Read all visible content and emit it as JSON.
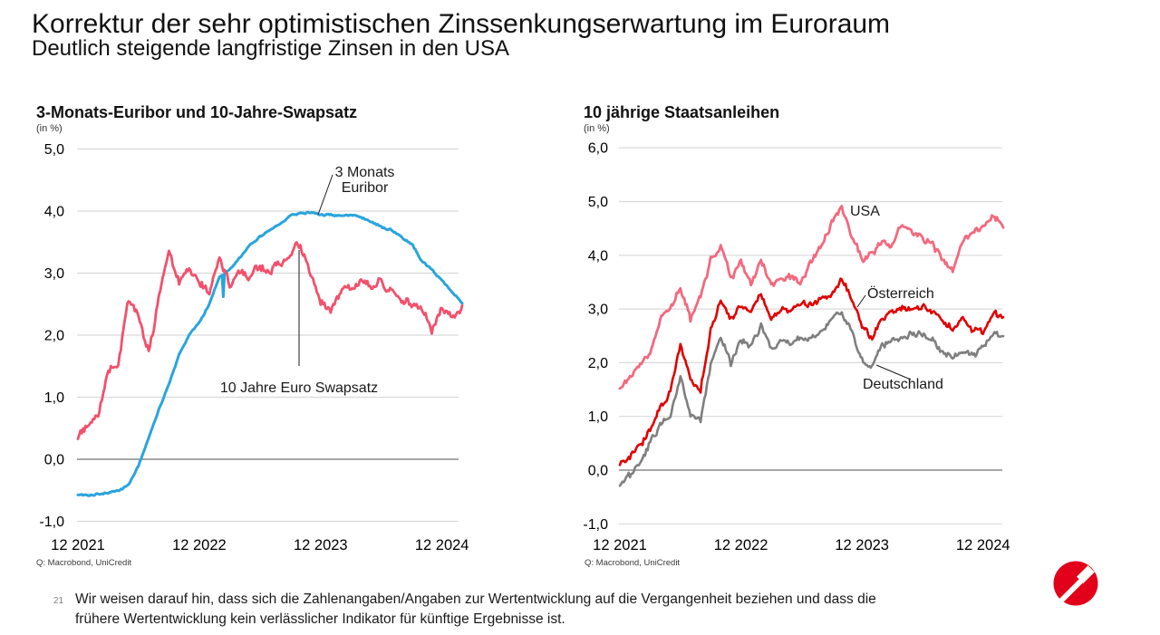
{
  "header": {
    "title": "Korrektur der sehr optimistischen Zinssenkungserwartung im Euroraum",
    "subtitle": "Deutlich steigende langfristige Zinsen in den USA"
  },
  "footer": {
    "page_number": "21",
    "line1": "Wir weisen darauf hin, dass sich die Zahlenangaben/Angaben zur Wertentwicklung auf die Vergangenheit beziehen und dass die",
    "line2": "frühere Wertentwicklung kein verlässlicher Indikator für künftige Ergebnisse ist."
  },
  "logo": {
    "name": "unicredit-logo",
    "color": "#E2001A"
  },
  "chart_data": [
    {
      "type": "line",
      "title": "3-Monats-Euribor und 10-Jahre-Swapsatz",
      "unit_label": "(in %)",
      "source": "Q: Macrobond, UniCredit",
      "x_start": "2021-12",
      "x_end": "2025-02",
      "frequency": "monthly",
      "x_tick_labels": [
        "12 2021",
        "12 2022",
        "12 2023",
        "12 2024"
      ],
      "x_tick_months": [
        0,
        12,
        24,
        36
      ],
      "y_ticks": [
        5,
        4,
        3,
        2,
        1,
        0,
        -1
      ],
      "y_tick_labels": [
        "5,0",
        "4,0",
        "3,0",
        "2,0",
        "1,0",
        "0,0",
        "-1,0"
      ],
      "ylim": [
        -1,
        5
      ],
      "grid": true,
      "legend_position": "annotated-on-chart",
      "series": [
        {
          "name": "3 Monats Euribor",
          "color": "#2AA4DC",
          "width": 3,
          "noise": 0.012,
          "spike": {
            "m": 14.4,
            "v": 2.62
          },
          "values": [
            -0.57,
            -0.57,
            -0.56,
            -0.54,
            -0.5,
            -0.42,
            -0.1,
            0.35,
            0.8,
            1.2,
            1.7,
            2.0,
            2.2,
            2.5,
            2.95,
            3.05,
            3.25,
            3.45,
            3.58,
            3.7,
            3.8,
            3.93,
            3.97,
            3.98,
            3.94,
            3.94,
            3.93,
            3.94,
            3.9,
            3.84,
            3.74,
            3.7,
            3.58,
            3.48,
            3.2,
            3.05,
            2.88,
            2.7,
            2.52
          ]
        },
        {
          "name": "10 Jahre Euro Swapsatz",
          "color": "#F2506C",
          "width": 2.8,
          "noise": 0.05,
          "values": [
            0.35,
            0.55,
            0.7,
            1.45,
            1.55,
            2.6,
            2.3,
            1.7,
            2.6,
            3.35,
            2.85,
            3.1,
            2.9,
            2.7,
            3.3,
            2.8,
            3.05,
            2.95,
            3.1,
            3.05,
            3.15,
            3.3,
            3.47,
            3.0,
            2.55,
            2.45,
            2.7,
            2.75,
            2.9,
            2.8,
            2.85,
            2.75,
            2.6,
            2.5,
            2.45,
            2.1,
            2.45,
            2.3,
            2.45
          ]
        }
      ],
      "annotations": [
        {
          "text": "3 Monats\nEuribor"
        },
        {
          "text": "10 Jahre Euro Swapsatz"
        }
      ]
    },
    {
      "type": "line",
      "title": "10 jährige Staatsanleihen",
      "unit_label": "(in %)",
      "source": "Q: Macrobond, UniCredit",
      "x_start": "2021-12",
      "x_end": "2025-02",
      "frequency": "monthly",
      "x_tick_labels": [
        "12 2021",
        "12 2022",
        "12 2023",
        "12 2024"
      ],
      "x_tick_months": [
        0,
        12,
        24,
        36
      ],
      "y_ticks": [
        6,
        5,
        4,
        3,
        2,
        1,
        0,
        -1
      ],
      "y_tick_labels": [
        "6,0",
        "5,0",
        "4,0",
        "3,0",
        "2,0",
        "1,0",
        "0,0",
        "-1,0"
      ],
      "ylim": [
        -1,
        6
      ],
      "grid": true,
      "legend_position": "annotated-on-chart",
      "series": [
        {
          "name": "USA",
          "color": "#F2697E",
          "width": 2.8,
          "noise": 0.05,
          "values": [
            1.5,
            1.78,
            1.95,
            2.15,
            2.85,
            3.0,
            3.4,
            2.8,
            3.2,
            3.9,
            4.15,
            3.55,
            3.85,
            3.45,
            3.9,
            3.45,
            3.5,
            3.6,
            3.5,
            3.85,
            4.2,
            4.6,
            4.92,
            4.4,
            3.9,
            4.05,
            4.25,
            4.2,
            4.62,
            4.45,
            4.3,
            4.2,
            3.9,
            3.7,
            4.25,
            4.4,
            4.55,
            4.75,
            4.55
          ]
        },
        {
          "name": "Österreich",
          "color": "#E00000",
          "width": 2.6,
          "noise": 0.045,
          "values": [
            0.1,
            0.25,
            0.45,
            0.75,
            1.15,
            1.45,
            2.35,
            1.7,
            1.5,
            2.6,
            3.15,
            2.8,
            3.05,
            2.95,
            3.3,
            2.85,
            3.0,
            2.95,
            3.1,
            3.1,
            3.15,
            3.3,
            3.55,
            3.2,
            2.7,
            2.45,
            2.85,
            2.95,
            3.05,
            2.95,
            3.05,
            2.95,
            2.8,
            2.65,
            2.8,
            2.6,
            2.55,
            2.95,
            2.85
          ]
        },
        {
          "name": "Deutschland",
          "color": "#7F7F7F",
          "width": 2.6,
          "noise": 0.045,
          "values": [
            -0.3,
            -0.1,
            0.15,
            0.5,
            0.85,
            1.0,
            1.75,
            1.05,
            0.95,
            1.95,
            2.45,
            2.0,
            2.45,
            2.3,
            2.7,
            2.25,
            2.4,
            2.35,
            2.45,
            2.45,
            2.6,
            2.8,
            2.95,
            2.6,
            2.05,
            1.95,
            2.3,
            2.4,
            2.5,
            2.55,
            2.5,
            2.45,
            2.2,
            2.1,
            2.25,
            2.1,
            2.3,
            2.55,
            2.45
          ]
        }
      ],
      "annotations": [
        {
          "text": "USA"
        },
        {
          "text": "Österreich"
        },
        {
          "text": "Deutschland"
        }
      ]
    }
  ]
}
